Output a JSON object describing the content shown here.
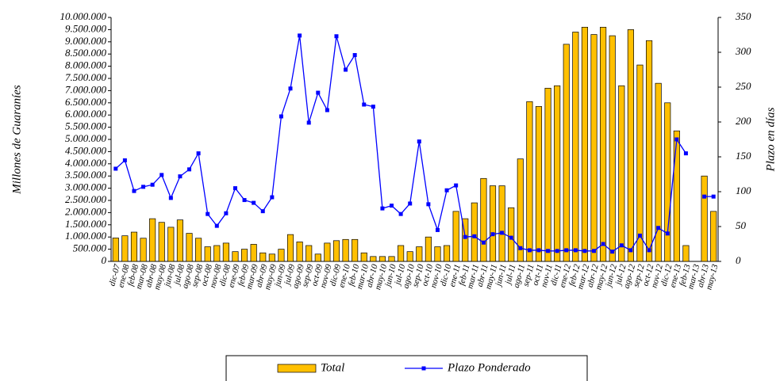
{
  "chart_data": {
    "type": "bar-line",
    "y_label": "Millones de Guaraníes",
    "y2_label": "Plazo en días",
    "categories": [
      "dic-07",
      "ene-08",
      "feb-08",
      "mar-08",
      "abr-08",
      "may-08",
      "jun-08",
      "jul-08",
      "ago-08",
      "sep-08",
      "oct-08",
      "nov-08",
      "dic-08",
      "ene-09",
      "feb-09",
      "mar-09",
      "abr-09",
      "may-09",
      "jun-09",
      "jul-09",
      "ago-09",
      "sep-09",
      "oct-09",
      "nov-09",
      "dic-09",
      "ene-10",
      "feb-10",
      "mar-10",
      "abr-10",
      "may-10",
      "jun-10",
      "jul-10",
      "ago-10",
      "sep-10",
      "oct-10",
      "nov-10",
      "dic-10",
      "ene-11",
      "feb-11",
      "mar-11",
      "abr-11",
      "may-11",
      "jun-11",
      "jul-11",
      "ago-11",
      "sep-11",
      "oct-11",
      "nov-11",
      "dic-11",
      "ene-12",
      "feb-12",
      "mar-12",
      "abr-12",
      "may-12",
      "jun-12",
      "jul-12",
      "ago-12",
      "sep-12",
      "oct-12",
      "nov-12",
      "dic-12",
      "ene-13",
      "feb-13",
      "mar-13",
      "abr-13",
      "may-13"
    ],
    "series": [
      {
        "name": "Total",
        "type": "bar",
        "color": "#ffc000",
        "values": [
          960000,
          1050000,
          1200000,
          950000,
          1750000,
          1600000,
          1400000,
          1700000,
          1150000,
          950000,
          600000,
          650000,
          750000,
          400000,
          500000,
          700000,
          350000,
          300000,
          500000,
          1100000,
          800000,
          650000,
          300000,
          750000,
          850000,
          900000,
          900000,
          350000,
          200000,
          200000,
          200000,
          650000,
          400000,
          600000,
          1000000,
          600000,
          650000,
          2050000,
          1750000,
          2400000,
          3400000,
          3100000,
          3100000,
          2200000,
          4200000,
          6550000,
          6350000,
          7100000,
          7200000,
          8900000,
          9400000,
          9600000,
          9300000,
          9600000,
          9250000,
          7200000,
          9500000,
          8050000,
          9050000,
          7300000,
          6500000,
          5350000,
          650000,
          null,
          3500000,
          2050000
        ]
      },
      {
        "name": "Plazo Ponderado",
        "type": "line",
        "axis": "y2",
        "color": "#0000ff",
        "values": [
          133,
          145,
          101,
          107,
          110,
          124,
          91,
          122,
          132,
          155,
          68,
          51,
          69,
          105,
          88,
          84,
          72,
          92,
          208,
          248,
          324,
          199,
          242,
          217,
          323,
          275,
          296,
          225,
          222,
          76,
          80,
          68,
          83,
          172,
          82,
          45,
          102,
          109,
          35,
          36,
          27,
          39,
          41,
          34,
          19,
          16,
          16,
          15,
          15,
          16,
          16,
          15,
          15,
          25,
          14,
          23,
          16,
          37,
          16,
          48,
          40,
          175,
          155,
          null,
          93,
          93
        ]
      }
    ],
    "ylim": [
      0,
      10000000
    ],
    "yticks": [
      0,
      {
        "value": 500000,
        "label": "500.000"
      },
      {
        "value": 1000000,
        "label": "1.000.000"
      },
      {
        "value": 1500000,
        "label": "1.500.000"
      },
      {
        "value": 2000000,
        "label": "2.000.000"
      },
      {
        "value": 2500000,
        "label": "2.500.000"
      },
      {
        "value": 3000000,
        "label": "3.000.000"
      },
      {
        "value": 3500000,
        "label": "3.500.000"
      },
      {
        "value": 4000000,
        "label": "4.000.000"
      },
      {
        "value": 4500000,
        "label": "4.500.000"
      },
      {
        "value": 5000000,
        "label": "5.000.000"
      },
      {
        "value": 5500000,
        "label": "5.500.000"
      },
      {
        "value": 6000000,
        "label": "6.000.000"
      },
      {
        "value": 6500000,
        "label": "6.500.000"
      },
      {
        "value": 7000000,
        "label": "7.000.000"
      },
      {
        "value": 7500000,
        "label": "7.500.000"
      },
      {
        "value": 8000000,
        "label": "8.000.000"
      },
      {
        "value": 8500000,
        "label": "8.500.000"
      },
      {
        "value": 9000000,
        "label": "9.000.000"
      },
      {
        "value": 9500000,
        "label": "9.500.000"
      },
      {
        "value": 10000000,
        "label": "10.000.000"
      }
    ],
    "y2lim": [
      0,
      350
    ],
    "y2ticks": [
      0,
      50,
      100,
      150,
      200,
      250,
      300,
      350
    ],
    "legend": "bottom"
  }
}
